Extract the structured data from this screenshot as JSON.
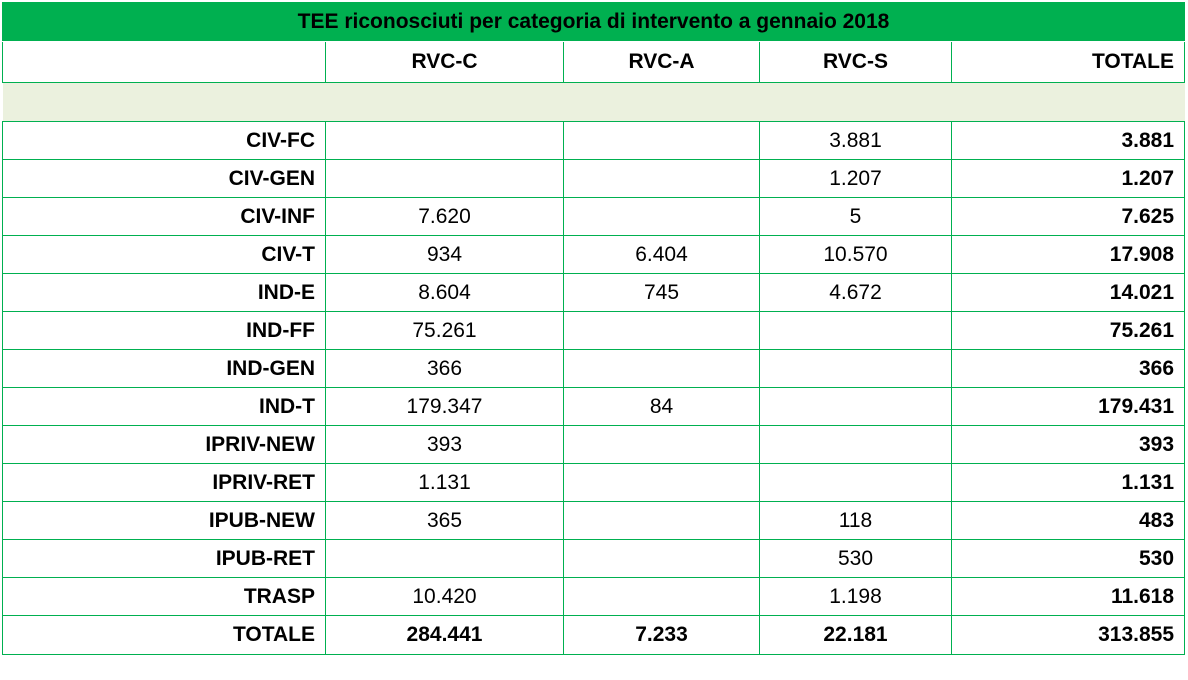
{
  "title": "TEE riconosciuti per categoria di intervento a gennaio 2018",
  "columns": [
    "",
    "RVC-C",
    "RVC-A",
    "RVC-S",
    "TOTALE"
  ],
  "rows": [
    {
      "label": "CIV-FC",
      "rvc_c": "",
      "rvc_a": "",
      "rvc_s": "3.881",
      "totale": "3.881"
    },
    {
      "label": "CIV-GEN",
      "rvc_c": "",
      "rvc_a": "",
      "rvc_s": "1.207",
      "totale": "1.207"
    },
    {
      "label": "CIV-INF",
      "rvc_c": "7.620",
      "rvc_a": "",
      "rvc_s": "5",
      "totale": "7.625"
    },
    {
      "label": "CIV-T",
      "rvc_c": "934",
      "rvc_a": "6.404",
      "rvc_s": "10.570",
      "totale": "17.908"
    },
    {
      "label": "IND-E",
      "rvc_c": "8.604",
      "rvc_a": "745",
      "rvc_s": "4.672",
      "totale": "14.021"
    },
    {
      "label": "IND-FF",
      "rvc_c": "75.261",
      "rvc_a": "",
      "rvc_s": "",
      "totale": "75.261"
    },
    {
      "label": "IND-GEN",
      "rvc_c": "366",
      "rvc_a": "",
      "rvc_s": "",
      "totale": "366"
    },
    {
      "label": "IND-T",
      "rvc_c": "179.347",
      "rvc_a": "84",
      "rvc_s": "",
      "totale": "179.431"
    },
    {
      "label": "IPRIV-NEW",
      "rvc_c": "393",
      "rvc_a": "",
      "rvc_s": "",
      "totale": "393"
    },
    {
      "label": "IPRIV-RET",
      "rvc_c": "1.131",
      "rvc_a": "",
      "rvc_s": "",
      "totale": "1.131"
    },
    {
      "label": "IPUB-NEW",
      "rvc_c": "365",
      "rvc_a": "",
      "rvc_s": "118",
      "totale": "483"
    },
    {
      "label": "IPUB-RET",
      "rvc_c": "",
      "rvc_a": "",
      "rvc_s": "530",
      "totale": "530"
    },
    {
      "label": "TRASP",
      "rvc_c": "10.420",
      "rvc_a": "",
      "rvc_s": "1.198",
      "totale": "11.618"
    }
  ],
  "total_row": {
    "label": "TOTALE",
    "rvc_c": "284.441",
    "rvc_a": "7.233",
    "rvc_s": "22.181",
    "totale": "313.855"
  },
  "colors": {
    "header_green": "#00b050",
    "spacer_fill": "#ebf1de"
  }
}
